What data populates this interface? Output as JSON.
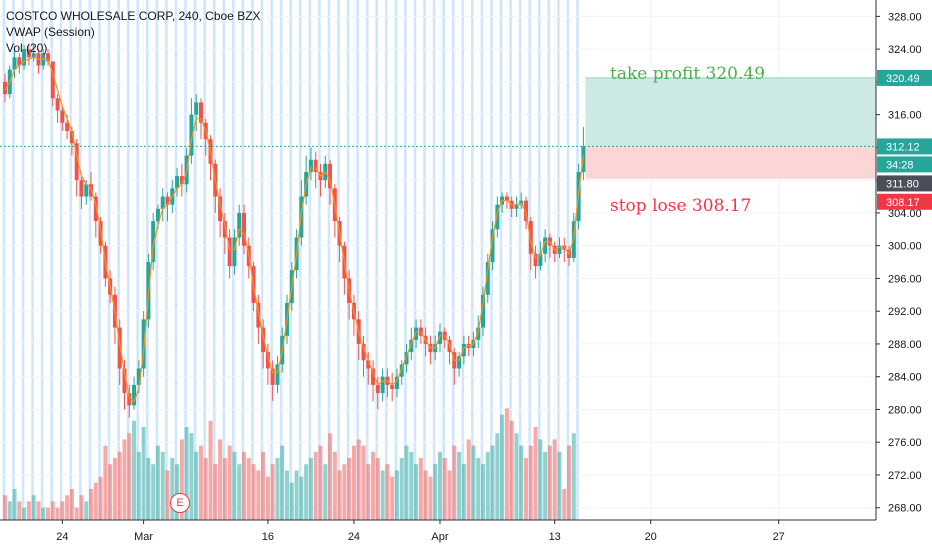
{
  "legend": {
    "title": "COSTCO WHOLESALE CORP, 240, Cboe BZX",
    "indicator1": "VWAP (Session)",
    "indicator2": "Vol (20)"
  },
  "annotations": {
    "take_profit": "take profit 320.49",
    "stop_loss": "stop lose 308.17",
    "earnings_marker": "E"
  },
  "price_tags": {
    "take_profit": "320.49",
    "current": "312.12",
    "countdown": "34:28",
    "previous": "311.80",
    "stop_loss": "308.17"
  },
  "colors": {
    "up": "#26a69a",
    "down": "#ef5350",
    "vwap": "#f7931a",
    "session_band": "#cfe6fb",
    "take_profit_zone": "#cce9e3",
    "stop_loss_zone": "#fcd6d6",
    "tp_text": "#4caf50",
    "sl_text": "#f23645"
  },
  "chart_data": {
    "type": "candlestick",
    "title": "COSTCO WHOLESALE CORP, 240, Cboe BZX",
    "y_axis": {
      "ticks": [
        "328.00",
        "324.00",
        "320.00",
        "316.00",
        "312.00",
        "308.00",
        "304.00",
        "300.00",
        "296.00",
        "292.00",
        "288.00",
        "284.00",
        "280.00",
        "276.00",
        "272.00",
        "268.00"
      ],
      "ylim": [
        266.5,
        330.0
      ]
    },
    "x_axis": {
      "ticks": [
        "24",
        "Mar",
        "16",
        "24",
        "Apr",
        "13",
        "20",
        "27"
      ]
    },
    "positions": {
      "take_profit": 320.49,
      "entry": 312.12,
      "stop_loss": 308.17
    },
    "candles": [
      [
        320,
        318.5,
        321,
        317.5
      ],
      [
        318.5,
        321.5,
        322,
        318
      ],
      [
        321.5,
        323,
        324,
        320.5
      ],
      [
        323,
        322,
        323.5,
        321
      ],
      [
        322,
        324,
        324.5,
        321.5
      ],
      [
        324,
        323,
        324.5,
        322
      ],
      [
        323,
        323.5,
        324.5,
        322.5
      ],
      [
        323.5,
        322,
        324,
        321
      ],
      [
        322,
        323.5,
        324,
        321.5
      ],
      [
        323.5,
        322.5,
        324,
        322
      ],
      [
        322.5,
        318,
        322.5,
        317
      ],
      [
        318,
        316.5,
        318.5,
        315
      ],
      [
        316.5,
        315,
        317,
        314
      ],
      [
        315,
        314,
        316,
        313
      ],
      [
        314,
        312.5,
        314.5,
        311
      ],
      [
        312.5,
        308,
        313,
        306
      ],
      [
        308,
        306,
        308.5,
        304.5
      ],
      [
        306,
        307.5,
        308,
        305
      ],
      [
        307.5,
        306,
        309,
        305.5
      ],
      [
        306,
        303,
        306.5,
        301
      ],
      [
        303,
        300,
        303.5,
        299
      ],
      [
        300,
        296,
        300.5,
        295
      ],
      [
        296,
        294,
        297,
        293
      ],
      [
        294,
        290,
        295,
        288
      ],
      [
        290,
        285,
        291,
        283
      ],
      [
        285,
        282,
        286,
        280
      ],
      [
        282,
        280.5,
        283,
        279
      ],
      [
        280.5,
        283,
        284,
        280
      ],
      [
        283,
        285,
        286,
        282
      ],
      [
        285,
        291,
        292,
        284
      ],
      [
        291,
        298,
        299,
        290
      ],
      [
        298,
        303,
        304,
        297
      ],
      [
        303,
        304.5,
        305,
        302
      ],
      [
        304.5,
        306,
        307,
        303
      ],
      [
        306,
        305,
        306.5,
        303
      ],
      [
        305,
        307,
        308,
        304
      ],
      [
        307,
        308.5,
        309.5,
        306
      ],
      [
        308.5,
        307.5,
        310,
        306
      ],
      [
        307.5,
        311,
        312,
        306.5
      ],
      [
        311,
        316,
        318,
        310
      ],
      [
        316,
        317.5,
        318.5,
        314
      ],
      [
        317.5,
        315,
        318,
        313
      ],
      [
        315,
        313,
        315.5,
        311
      ],
      [
        313,
        310,
        313.5,
        308
      ],
      [
        310,
        306,
        310.5,
        304
      ],
      [
        306,
        303,
        307,
        301
      ],
      [
        303,
        301,
        304,
        299
      ],
      [
        301,
        297.5,
        302,
        296
      ],
      [
        297.5,
        301,
        302,
        296.5
      ],
      [
        301,
        304,
        305,
        300
      ],
      [
        304,
        300,
        305,
        299
      ],
      [
        300,
        297.5,
        301,
        296
      ],
      [
        297.5,
        293,
        298,
        292
      ],
      [
        293,
        290,
        294,
        288
      ],
      [
        290,
        287,
        291,
        285
      ],
      [
        287,
        285,
        288,
        283
      ],
      [
        285,
        283,
        286,
        281
      ],
      [
        283,
        285.5,
        286.5,
        282
      ],
      [
        285.5,
        289,
        290,
        284.5
      ],
      [
        289,
        293,
        294,
        288
      ],
      [
        293,
        297,
        298,
        292
      ],
      [
        297,
        301,
        302,
        296
      ],
      [
        301,
        306,
        308,
        300
      ],
      [
        306,
        309,
        311,
        305
      ],
      [
        309,
        310.5,
        312,
        308
      ],
      [
        310.5,
        309,
        311.5,
        307
      ],
      [
        309,
        308,
        310,
        306
      ],
      [
        308,
        310,
        311,
        307
      ],
      [
        310,
        307,
        310.5,
        305
      ],
      [
        307,
        303,
        307.5,
        301
      ],
      [
        303,
        300,
        303.5,
        298
      ],
      [
        300,
        296,
        300.5,
        294
      ],
      [
        296,
        293,
        297,
        291
      ],
      [
        293,
        291,
        294,
        289
      ],
      [
        291,
        288,
        292,
        286
      ],
      [
        288,
        286,
        289,
        284
      ],
      [
        286,
        285,
        287,
        283
      ],
      [
        285,
        283,
        286,
        281
      ],
      [
        283,
        282,
        284,
        280
      ],
      [
        282,
        284,
        285,
        281
      ],
      [
        284,
        283,
        285,
        281.5
      ],
      [
        283,
        282.5,
        284.5,
        281
      ],
      [
        282.5,
        284,
        285,
        281.5
      ],
      [
        284,
        285.5,
        286,
        283
      ],
      [
        285.5,
        287,
        288,
        284.5
      ],
      [
        287,
        288.5,
        290,
        286
      ],
      [
        288.5,
        290,
        291,
        287.5
      ],
      [
        290,
        289,
        291,
        288
      ],
      [
        289,
        288,
        290,
        286.5
      ],
      [
        288,
        287,
        289,
        285.5
      ],
      [
        287,
        288,
        289,
        286
      ],
      [
        288,
        289.5,
        290.5,
        287
      ],
      [
        289.5,
        288.5,
        290,
        287.5
      ],
      [
        288.5,
        287,
        289,
        285.5
      ],
      [
        287,
        285,
        287.5,
        283
      ],
      [
        285,
        286.5,
        287,
        284
      ],
      [
        286.5,
        288,
        289,
        285.5
      ],
      [
        288,
        287.5,
        289,
        286.5
      ],
      [
        287.5,
        288.5,
        289.5,
        286.5
      ],
      [
        288.5,
        290,
        291.5,
        287.5
      ],
      [
        290,
        294,
        295,
        289
      ],
      [
        294,
        298,
        299,
        293
      ],
      [
        298,
        302,
        303,
        297
      ],
      [
        302,
        305,
        306,
        301
      ],
      [
        305,
        306,
        306.5,
        304
      ],
      [
        306,
        305.5,
        306.5,
        304.5
      ],
      [
        305.5,
        304.5,
        306,
        303.5
      ],
      [
        304.5,
        305,
        306,
        303.5
      ],
      [
        305,
        305.5,
        306.5,
        304.5
      ],
      [
        305.5,
        303,
        306,
        302
      ],
      [
        303,
        299,
        303.5,
        297
      ],
      [
        299,
        297.5,
        300,
        296
      ],
      [
        297.5,
        299,
        300.5,
        297
      ],
      [
        299,
        301,
        302,
        298
      ],
      [
        301,
        300,
        301.5,
        298.5
      ],
      [
        300,
        299,
        300.5,
        298
      ],
      [
        299,
        300,
        301,
        298.5
      ],
      [
        300,
        299.5,
        301,
        298
      ],
      [
        299.5,
        298.5,
        300,
        297.5
      ],
      [
        298.5,
        303,
        304,
        298
      ],
      [
        303,
        309,
        310,
        302
      ],
      [
        309,
        312.12,
        314.5,
        308
      ]
    ],
    "volume": [
      4,
      3,
      5,
      3,
      2,
      3,
      4,
      3,
      2,
      2,
      3,
      2,
      3,
      4,
      5,
      2,
      4,
      3,
      5,
      6,
      7,
      12,
      9,
      10,
      11,
      13,
      14,
      16,
      11,
      15,
      10,
      9,
      12,
      11,
      8,
      10,
      9,
      13,
      15,
      14,
      11,
      12,
      10,
      16,
      9,
      13,
      10,
      12,
      11,
      9,
      11,
      10,
      9,
      8,
      11,
      7,
      9,
      10,
      12,
      8,
      6,
      8,
      7,
      9,
      10,
      11,
      12,
      9,
      14,
      11,
      8,
      9,
      10,
      12,
      13,
      12,
      9,
      11,
      10,
      8,
      9,
      7,
      8,
      10,
      12,
      11,
      9,
      10,
      8,
      7,
      9,
      11,
      10,
      8,
      12,
      11,
      9,
      13,
      12,
      10,
      9,
      11,
      12,
      14,
      17,
      18,
      16,
      14,
      12,
      10,
      12,
      15,
      13,
      11,
      12,
      13,
      11,
      5,
      12,
      14
    ],
    "vwap": [
      319,
      320,
      321.5,
      322,
      322.5,
      322.8,
      323,
      322.8,
      322.8,
      322.7,
      321,
      319,
      317,
      315.5,
      314,
      311,
      308.5,
      307.5,
      307,
      305,
      302,
      298,
      295,
      292,
      288,
      284.5,
      281.5,
      281,
      282.5,
      287,
      294,
      300,
      302.5,
      304.5,
      305,
      306,
      307,
      307.5,
      309,
      313,
      315.5,
      315.5,
      314,
      311.5,
      308,
      305,
      302.5,
      299.5,
      299.5,
      302,
      301.5,
      299,
      295,
      292,
      289,
      286.5,
      284.5,
      284.5,
      287,
      291,
      295,
      299,
      304,
      307.5,
      309.5,
      309.5,
      308.5,
      309,
      308,
      305,
      301.5,
      298,
      294.5,
      292,
      289.5,
      287.5,
      286,
      284.5,
      283,
      283.5,
      283.5,
      283,
      283.5,
      285,
      286.5,
      288,
      289.5,
      289.5,
      288.5,
      287.5,
      287.5,
      289,
      289,
      288,
      286,
      286,
      287.5,
      287.8,
      288,
      289.5,
      293,
      297,
      301,
      304,
      305.5,
      305.5,
      305,
      305,
      305.2,
      304,
      300.5,
      298.5,
      298.8,
      300.5,
      300.5,
      299.5,
      299.8,
      299.8,
      299,
      301,
      306.5,
      311
    ]
  }
}
